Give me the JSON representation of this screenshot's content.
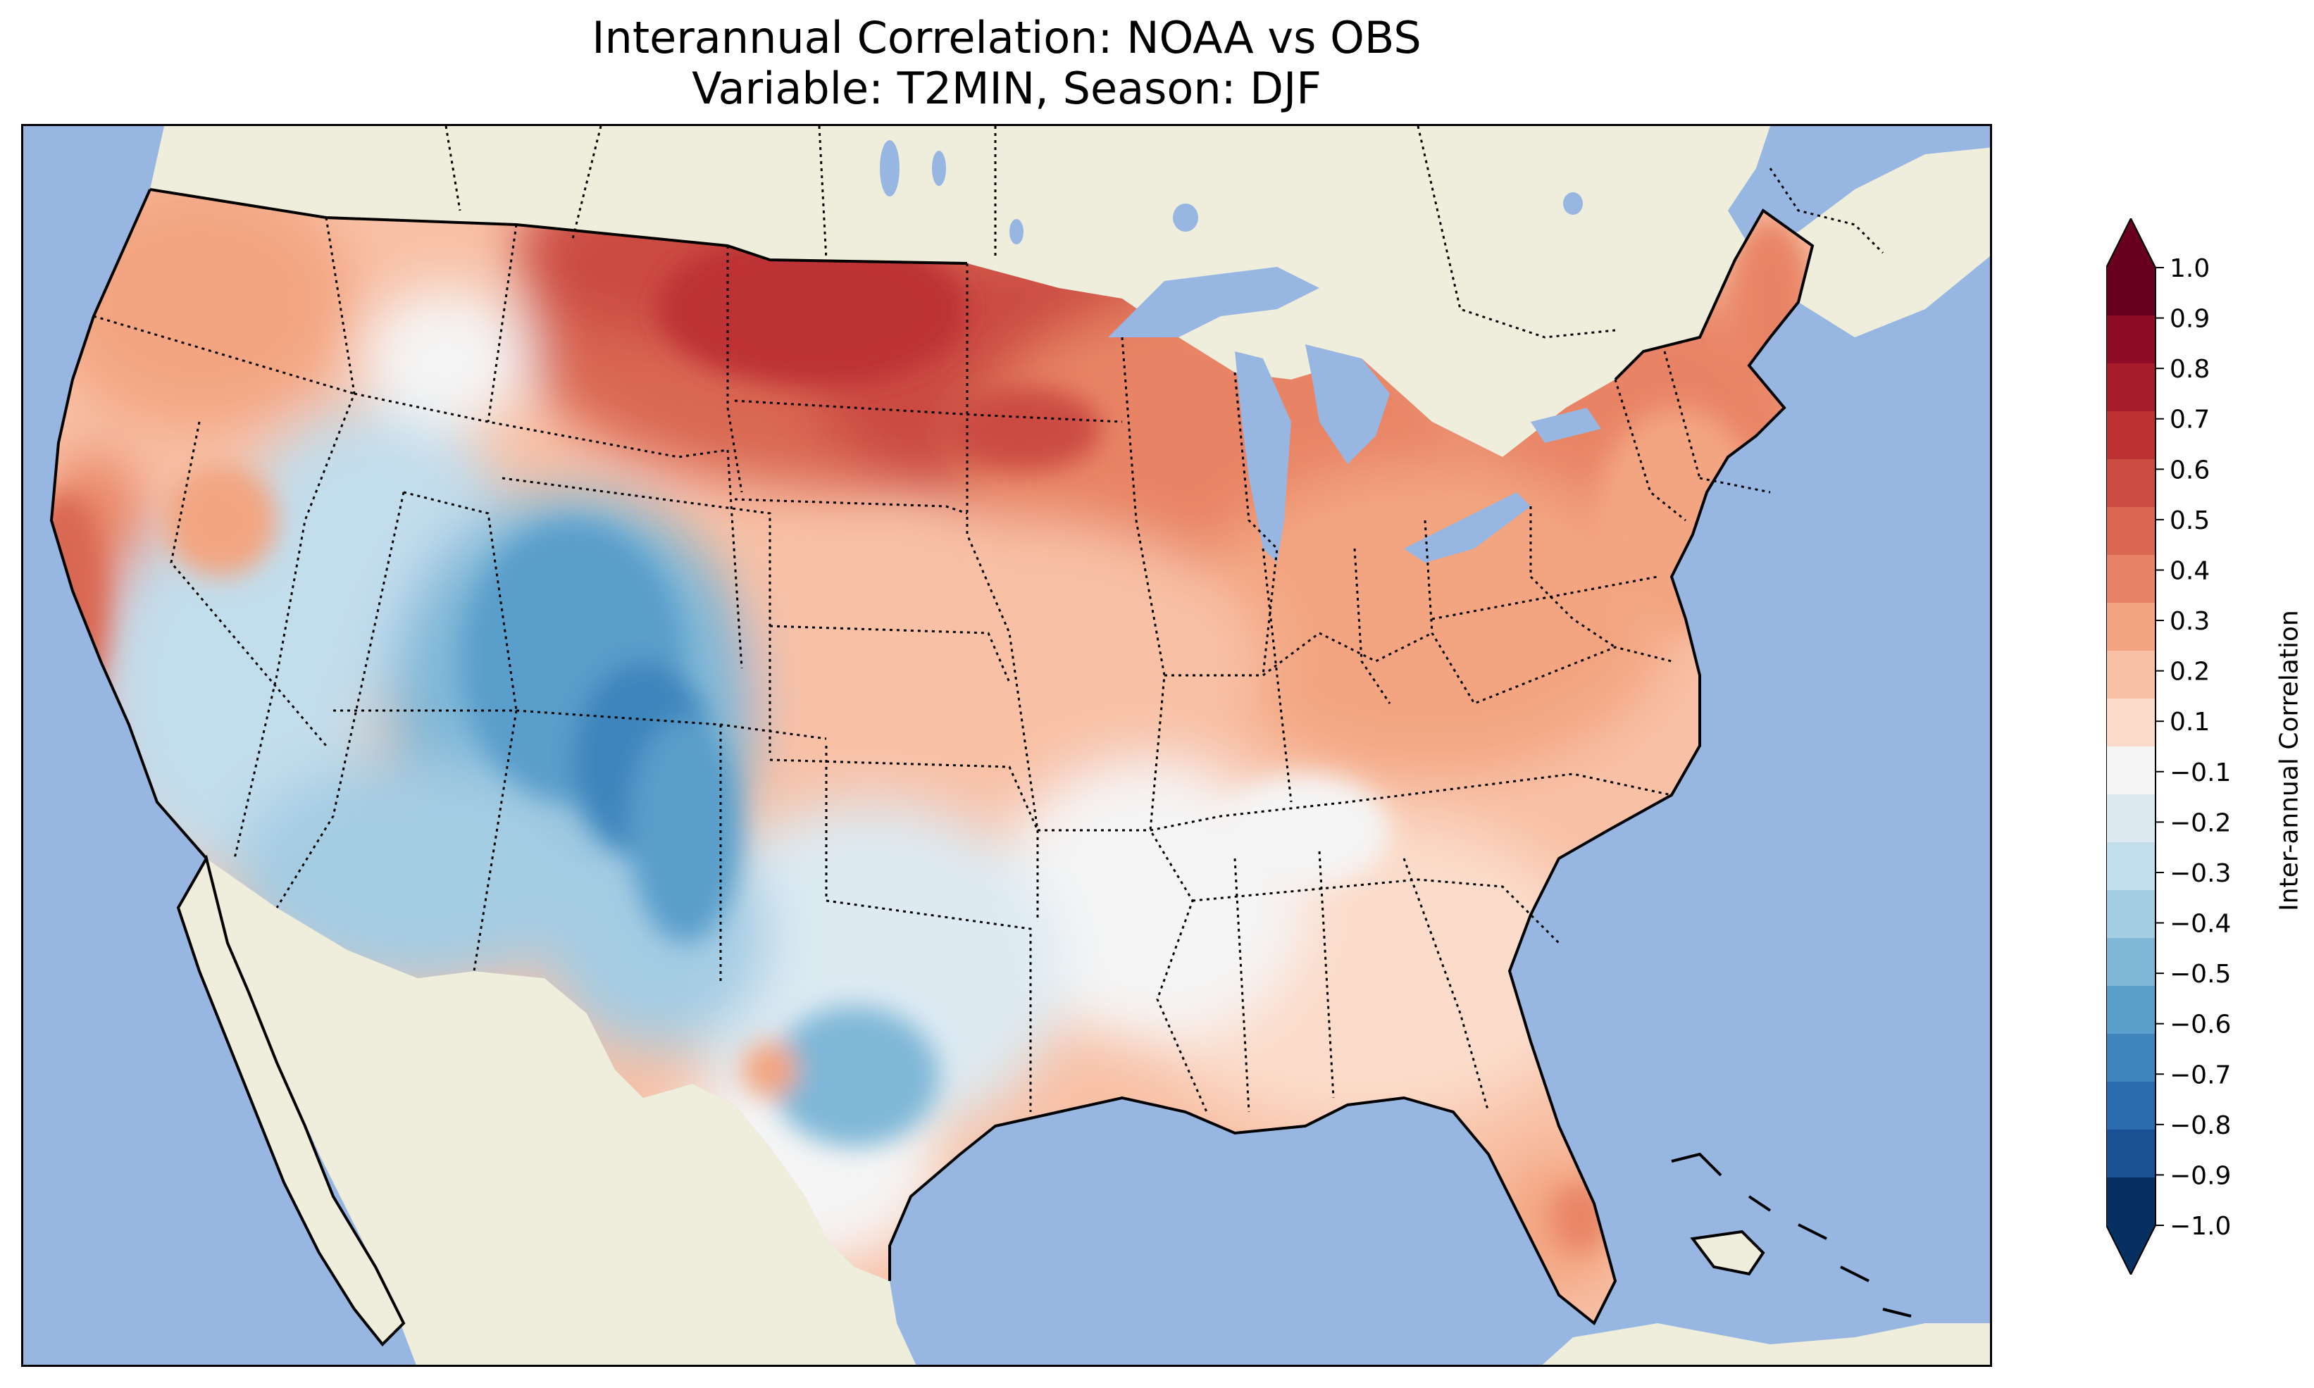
{
  "title": {
    "line1": "Interannual Correlation: NOAA vs OBS",
    "line2": "Variable: T2MIN, Season: DJF"
  },
  "colors": {
    "ocean": "#97b6e1",
    "land": "#efeddc",
    "boundary": "#000000"
  },
  "map": {
    "projection": "Lambert Conformal (CONUS)",
    "region": "Contiguous United States",
    "borders": "state boundaries dotted",
    "field_summary": [
      {
        "region": "Northern Great Plains / Dakotas",
        "correlation": 0.55
      },
      {
        "region": "Upper Midwest / Minnesota",
        "correlation": 0.5
      },
      {
        "region": "Northeast / New England",
        "correlation": 0.35
      },
      {
        "region": "Pacific Northwest",
        "correlation": 0.3
      },
      {
        "region": "Central California coast",
        "correlation": 0.45
      },
      {
        "region": "Ohio Valley / Great Lakes",
        "correlation": 0.3
      },
      {
        "region": "Central Plains",
        "correlation": 0.2
      },
      {
        "region": "Southeast",
        "correlation": 0.15
      },
      {
        "region": "Southern Plains / Texas",
        "correlation": -0.1
      },
      {
        "region": "Great Basin / Nevada",
        "correlation": -0.3
      },
      {
        "region": "Wyoming / Colorado Rockies",
        "correlation": -0.6
      },
      {
        "region": "Arizona / New Mexico",
        "correlation": -0.35
      },
      {
        "region": "South Florida",
        "correlation": 0.5
      }
    ]
  },
  "colorbar": {
    "label": "Inter-annual Correlation",
    "ticks": [
      "1.0",
      "0.9",
      "0.8",
      "0.7",
      "0.6",
      "0.5",
      "0.4",
      "0.3",
      "0.2",
      "0.1",
      "−0.1",
      "−0.2",
      "−0.3",
      "−0.4",
      "−0.5",
      "−0.6",
      "−0.7",
      "−0.8",
      "−0.9",
      "−1.0"
    ],
    "bins": [
      {
        "color": "#67001f"
      },
      {
        "color": "#8e0c25"
      },
      {
        "color": "#a71b2b"
      },
      {
        "color": "#bd3135"
      },
      {
        "color": "#cb4c43"
      },
      {
        "color": "#d96752"
      },
      {
        "color": "#e88465"
      },
      {
        "color": "#f3a581"
      },
      {
        "color": "#f8c1a6"
      },
      {
        "color": "#fbdcca"
      },
      {
        "color": "#f5f5f5"
      },
      {
        "color": "#ddeaf2"
      },
      {
        "color": "#c2ddec"
      },
      {
        "color": "#a4cce3"
      },
      {
        "color": "#7fb7d7"
      },
      {
        "color": "#5a9ecb"
      },
      {
        "color": "#3d85bc"
      },
      {
        "color": "#2a6cad"
      },
      {
        "color": "#1a5193"
      },
      {
        "color": "#053061"
      }
    ],
    "extend_top_color": "#67001f",
    "extend_bottom_color": "#053061"
  }
}
